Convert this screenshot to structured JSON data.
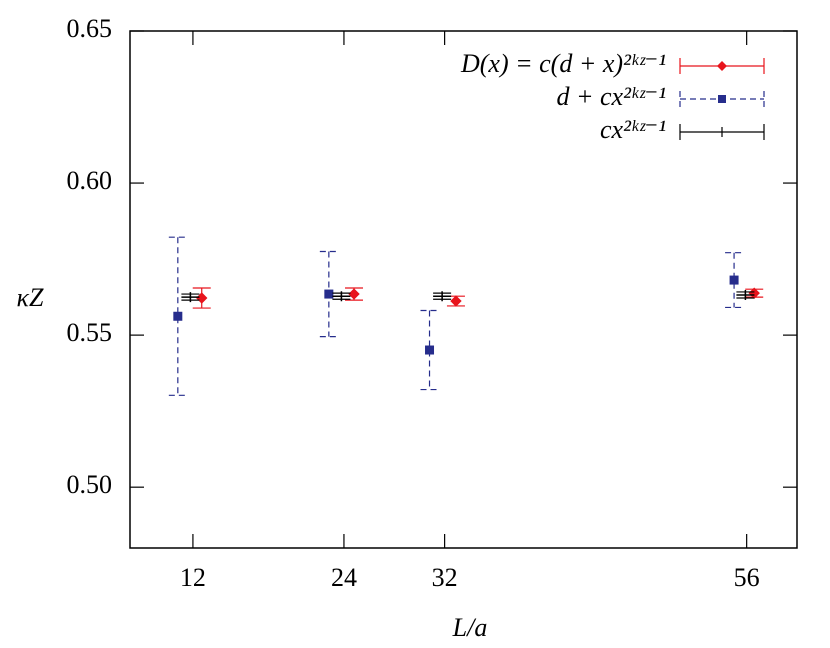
{
  "chart_data": {
    "type": "errorbar",
    "xlabel": "L/a",
    "ylabel": "κZ",
    "xlim": [
      7,
      60
    ],
    "ylim": [
      0.48,
      0.65
    ],
    "xticks": [
      12,
      24,
      32,
      56
    ],
    "yticks": [
      {
        "value": 0.5,
        "label": "0.50"
      },
      0.55,
      {
        "value": 0.6,
        "label": "0.60"
      },
      0.65
    ],
    "legend": "top-right",
    "series": [
      {
        "name": "D(x) = c(d + x)²ᵏᶻ⁻¹",
        "color": "#e8141c",
        "marker": "diamond",
        "dashed": false,
        "x": [
          12.7,
          24.8,
          32.9,
          56.6
        ],
        "values": [
          0.5622,
          0.5635,
          0.5612,
          0.5638
        ],
        "errors": [
          0.0033,
          0.002,
          0.0016,
          0.0013
        ]
      },
      {
        "name": "d + cx²ᵏᶻ⁻¹",
        "color": "#262d8c",
        "marker": "square",
        "dashed": true,
        "x": [
          10.8,
          22.8,
          30.8,
          55
        ],
        "values": [
          0.5562,
          0.5635,
          0.5451,
          0.5681
        ],
        "errors": [
          0.026,
          0.014,
          0.013,
          0.009
        ]
      },
      {
        "name": "cx²ᵏᶻ⁻¹",
        "color": "#000000",
        "marker": "plus",
        "dashed": false,
        "x": [
          11.8,
          23.8,
          31.8,
          55.9
        ],
        "values": [
          0.5625,
          0.5628,
          0.5628,
          0.5632
        ],
        "errors": [
          0.001,
          0.001,
          0.001,
          0.001
        ]
      }
    ]
  }
}
